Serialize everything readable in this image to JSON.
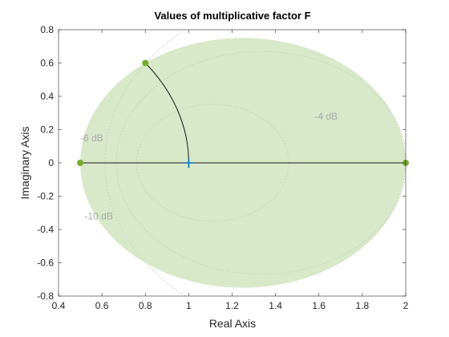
{
  "chart_data": {
    "type": "scatter",
    "title": "Values of multiplicative factor F",
    "xlabel": "Real Axis",
    "ylabel": "Imaginary Axis",
    "xlim": [
      0.4,
      2.0
    ],
    "ylim": [
      -0.8,
      0.8
    ],
    "xticks": [
      0.4,
      0.6,
      0.8,
      1.0,
      1.2,
      1.4,
      1.6,
      1.8,
      2.0
    ],
    "xtick_labels": [
      "0.4",
      "0.6",
      "0.8",
      "1",
      "1.2",
      "1.4",
      "1.6",
      "1.8",
      "2"
    ],
    "yticks": [
      -0.8,
      -0.6,
      -0.4,
      -0.2,
      0,
      0.2,
      0.4,
      0.6,
      0.8
    ],
    "ytick_labels": [
      "-0.8",
      "-0.6",
      "-0.4",
      "-0.2",
      "0",
      "0.2",
      "0.4",
      "0.6",
      "0.8"
    ],
    "grid": false,
    "uncertainty_disk": {
      "center": [
        1.25,
        0.0
      ],
      "radius": 0.75,
      "color": "#d4e5c2"
    },
    "points": [
      {
        "x": 0.5,
        "y": 0.0
      },
      {
        "x": 0.8,
        "y": 0.6
      },
      {
        "x": 2.0,
        "y": 0.0
      }
    ],
    "point_color": "#77ac30",
    "nominal_point": {
      "x": 1.0,
      "y": 0.0,
      "marker": "+",
      "color": "#0072bd"
    },
    "segments": [
      {
        "from": [
          0.5,
          0.0
        ],
        "to": [
          2.0,
          0.0
        ]
      }
    ],
    "arc": {
      "center": [
        0.0,
        0.0
      ],
      "radius": 1.0,
      "from": [
        0.8,
        0.6
      ],
      "to": [
        1.0,
        0.0
      ]
    },
    "gain_contours": [
      {
        "label": "-6 dB",
        "gain_db": -6,
        "label_pos": [
          0.5,
          0.13
        ]
      },
      {
        "label": "-10 dB",
        "gain_db": -10,
        "label_pos": [
          0.52,
          -0.34
        ]
      },
      {
        "label": "-4 dB",
        "gain_db": -4,
        "label_pos": [
          1.58,
          0.26
        ]
      }
    ],
    "contour_color": "#c8c8c8",
    "label_color": "#a9a9a9"
  }
}
